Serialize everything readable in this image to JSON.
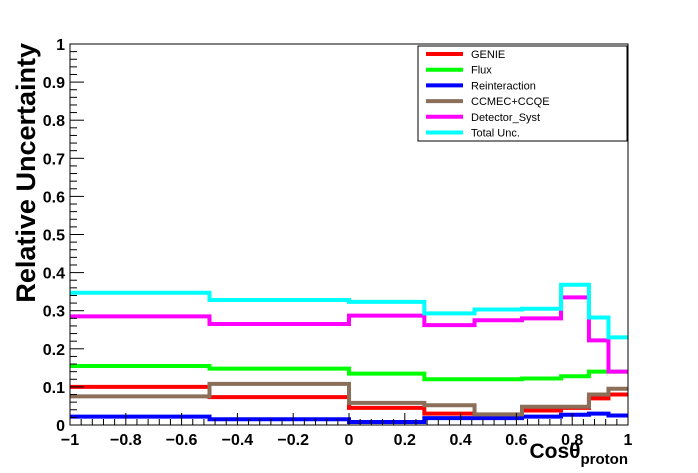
{
  "chart_data": {
    "type": "line",
    "subtype": "step-histogram",
    "title": "",
    "xlabel_main": "Cosθ",
    "xlabel_sub": "proton",
    "ylabel": "Relative Uncertainty",
    "xlim": [
      -1,
      1
    ],
    "ylim": [
      0,
      1
    ],
    "x_ticks": [
      "−1",
      "−0.8",
      "−0.6",
      "−0.4",
      "−0.2",
      "0",
      "0.2",
      "0.4",
      "0.6",
      "0.8",
      "1"
    ],
    "y_ticks": [
      "0",
      "0.1",
      "0.2",
      "0.3",
      "0.4",
      "0.5",
      "0.6",
      "0.7",
      "0.8",
      "0.9",
      "1"
    ],
    "grid": false,
    "legend_position": "top-right",
    "bin_edges": [
      -1,
      -0.5,
      0,
      0.27,
      0.45,
      0.62,
      0.76,
      0.86,
      0.93,
      1
    ],
    "series": [
      {
        "name": "GENIE",
        "color": "#ff0000",
        "values": [
          0.1,
          0.073,
          0.045,
          0.03,
          0.025,
          0.038,
          0.045,
          0.07,
          0.08
        ]
      },
      {
        "name": "Flux",
        "color": "#00ff00",
        "values": [
          0.155,
          0.148,
          0.135,
          0.12,
          0.12,
          0.122,
          0.128,
          0.14,
          0.14
        ]
      },
      {
        "name": "Reinteraction",
        "color": "#0000ff",
        "values": [
          0.022,
          0.015,
          0.008,
          0.018,
          0.018,
          0.022,
          0.027,
          0.03,
          0.025
        ]
      },
      {
        "name": "CCMEC+CCQE",
        "color": "#8b6f58",
        "values": [
          0.075,
          0.108,
          0.058,
          0.052,
          0.028,
          0.048,
          0.048,
          0.08,
          0.095
        ]
      },
      {
        "name": "Detector_Syst",
        "color": "#ff00ff",
        "values": [
          0.285,
          0.265,
          0.287,
          0.262,
          0.275,
          0.28,
          0.335,
          0.222,
          0.14
        ]
      },
      {
        "name": "Total Unc.",
        "color": "#00ffff",
        "values": [
          0.347,
          0.328,
          0.323,
          0.293,
          0.303,
          0.305,
          0.368,
          0.282,
          0.23
        ]
      }
    ]
  }
}
